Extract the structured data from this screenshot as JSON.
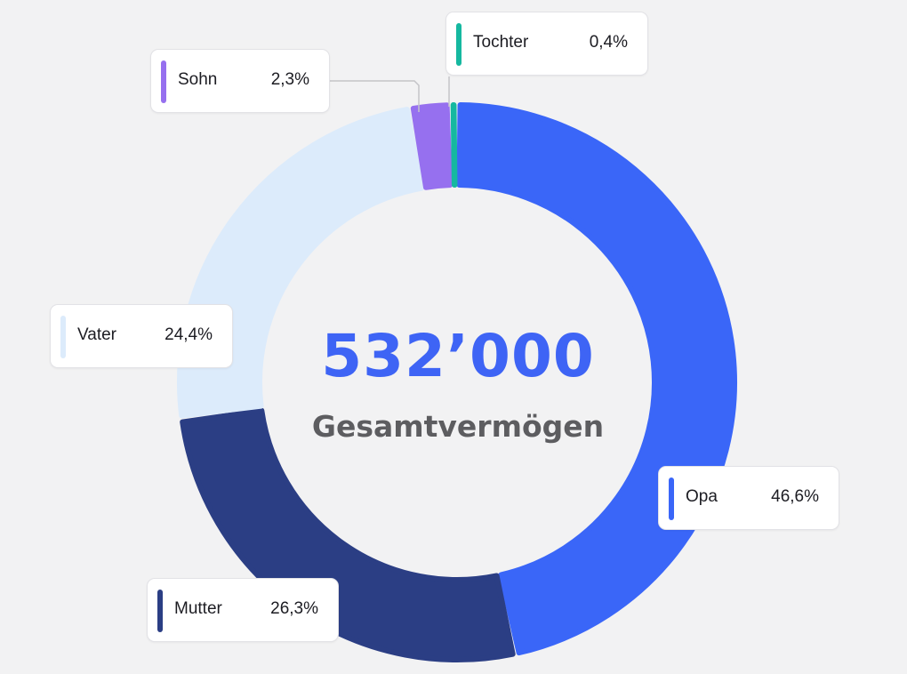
{
  "center": {
    "value": "532’000",
    "label": "Gesamtvermögen"
  },
  "chart_data": {
    "type": "pie",
    "categories": [
      "Opa",
      "Mutter",
      "Vater",
      "Sohn",
      "Tochter"
    ],
    "values": [
      46.6,
      26.3,
      24.4,
      2.3,
      0.4
    ],
    "labels": [
      "46,6%",
      "26,3%",
      "24,4%",
      "2,3%",
      "0,4%"
    ],
    "colors": [
      "#3a66f8",
      "#2b3e84",
      "#dcebfb",
      "#9670ef",
      "#15b8a0"
    ],
    "total": "532’000",
    "title": ""
  }
}
